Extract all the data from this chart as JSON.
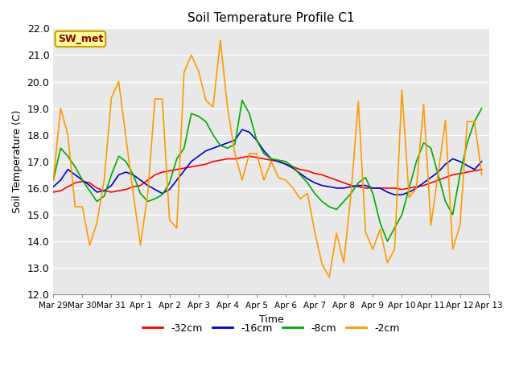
{
  "title": "Soil Temperature Profile C1",
  "xlabel": "Time",
  "ylabel": "Soil Temperature (C)",
  "ylim": [
    12.0,
    22.0
  ],
  "yticks": [
    12.0,
    13.0,
    14.0,
    15.0,
    16.0,
    17.0,
    18.0,
    19.0,
    20.0,
    21.0,
    22.0
  ],
  "x_labels": [
    "Mar 29",
    "Mar 30",
    "Mar 31",
    "Apr 1",
    "Apr 2",
    "Apr 3",
    "Apr 4",
    "Apr 5",
    "Apr 6",
    "Apr 7",
    "Apr 8",
    "Apr 9",
    "Apr 10",
    "Apr 11",
    "Apr 12",
    "Apr 13"
  ],
  "bg_color": "#e8e8e8",
  "grid_color": "#ffffff",
  "annotation_text": "SW_met",
  "annotation_bg": "#ffff99",
  "annotation_border": "#cc9900",
  "annotation_text_color": "#8b0000",
  "n_days": 15,
  "pts_per_day": 4,
  "series": {
    "-32cm": {
      "color": "#ff0000",
      "values": [
        15.85,
        15.9,
        16.05,
        16.2,
        16.25,
        16.2,
        16.0,
        15.9,
        15.85,
        15.9,
        15.95,
        16.05,
        16.1,
        16.3,
        16.5,
        16.6,
        16.65,
        16.7,
        16.75,
        16.8,
        16.85,
        16.9,
        17.0,
        17.05,
        17.1,
        17.1,
        17.15,
        17.2,
        17.15,
        17.1,
        17.05,
        17.0,
        16.9,
        16.8,
        16.7,
        16.65,
        16.55,
        16.5,
        16.4,
        16.3,
        16.2,
        16.1,
        16.05,
        16.0,
        16.0,
        16.0,
        16.0,
        16.0,
        15.95,
        16.0,
        16.05,
        16.1,
        16.2,
        16.3,
        16.4,
        16.5,
        16.55,
        16.6,
        16.65,
        16.7
      ]
    },
    "-16cm": {
      "color": "#0000cc",
      "values": [
        16.05,
        16.3,
        16.7,
        16.5,
        16.3,
        16.1,
        15.85,
        15.9,
        16.1,
        16.5,
        16.6,
        16.5,
        16.3,
        16.1,
        15.95,
        15.8,
        15.95,
        16.3,
        16.65,
        17.0,
        17.2,
        17.4,
        17.5,
        17.6,
        17.7,
        17.8,
        18.2,
        18.1,
        17.8,
        17.4,
        17.1,
        17.0,
        16.9,
        16.75,
        16.55,
        16.35,
        16.2,
        16.1,
        16.05,
        16.0,
        16.0,
        16.05,
        16.1,
        16.1,
        16.0,
        16.0,
        15.85,
        15.75,
        15.75,
        15.85,
        16.0,
        16.2,
        16.4,
        16.6,
        16.9,
        17.1,
        17.0,
        16.85,
        16.7,
        17.0
      ]
    },
    "-8cm": {
      "color": "#00aa00",
      "values": [
        16.3,
        17.5,
        17.2,
        16.8,
        16.3,
        15.9,
        15.5,
        15.7,
        16.5,
        17.2,
        17.0,
        16.5,
        15.8,
        15.5,
        15.6,
        15.75,
        16.2,
        17.1,
        17.5,
        18.8,
        18.7,
        18.5,
        18.0,
        17.6,
        17.5,
        17.65,
        19.3,
        18.8,
        17.8,
        17.3,
        17.1,
        17.05,
        17.0,
        16.8,
        16.5,
        16.2,
        15.8,
        15.5,
        15.3,
        15.2,
        15.5,
        15.8,
        16.2,
        16.4,
        15.8,
        14.7,
        14.0,
        14.5,
        15.0,
        16.0,
        17.0,
        17.7,
        17.5,
        16.5,
        15.5,
        15.0,
        16.5,
        17.7,
        18.5,
        19.0
      ]
    },
    "-2cm": {
      "color": "#ff9900",
      "values": [
        16.3,
        19.0,
        18.0,
        15.3,
        15.3,
        13.85,
        14.7,
        16.3,
        19.4,
        20.0,
        17.9,
        15.8,
        13.85,
        15.8,
        19.35,
        19.35,
        14.8,
        14.5,
        20.35,
        21.0,
        20.4,
        19.3,
        19.05,
        21.55,
        19.0,
        17.3,
        16.3,
        17.3,
        17.3,
        16.3,
        17.0,
        16.4,
        16.3,
        16.0,
        15.6,
        15.8,
        14.35,
        13.15,
        12.65,
        14.3,
        13.2,
        15.8,
        19.25,
        14.35,
        13.7,
        14.45,
        13.2,
        13.7,
        19.7,
        15.65,
        16.0,
        19.15,
        14.6,
        16.55,
        18.55,
        13.7,
        14.6,
        18.5,
        18.5,
        16.5
      ]
    }
  },
  "legend": [
    {
      "label": "-32cm",
      "color": "#ff0000"
    },
    {
      "label": "-16cm",
      "color": "#0000cc"
    },
    {
      "label": "-8cm",
      "color": "#00aa00"
    },
    {
      "label": "-2cm",
      "color": "#ff9900"
    }
  ]
}
